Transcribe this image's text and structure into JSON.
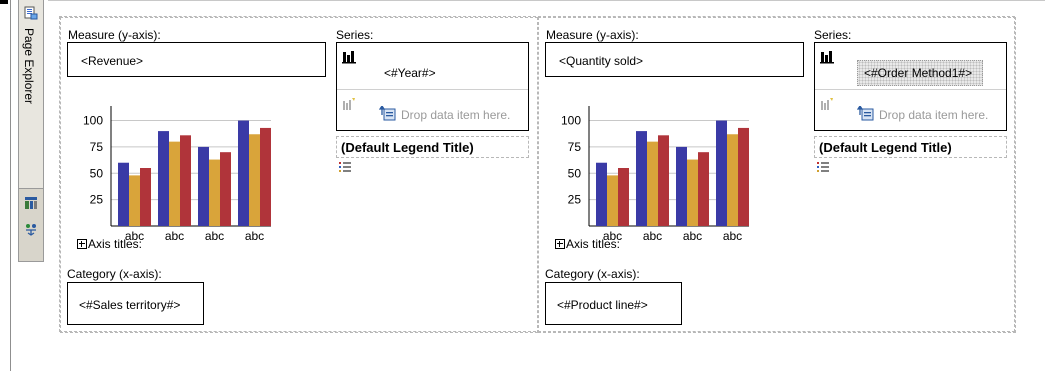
{
  "sidebar": {
    "page_explorer_label": "Page Explorer",
    "icons": [
      "page-explorer-icon",
      "toolbox-icon",
      "data-items-icon"
    ]
  },
  "charts": [
    {
      "measure_label": "Measure (y-axis):",
      "measure_value": "<Revenue>",
      "series_label": "Series:",
      "series_value": "<#Year#>",
      "series_selected": false,
      "drop_text": "Drop data item here.",
      "legend_title": "(Default Legend Title)",
      "axis_titles_label": "Axis titles:",
      "category_label": "Category (x-axis):",
      "category_value": "<#Sales territory#>"
    },
    {
      "measure_label": "Measure (y-axis):",
      "measure_value": "<Quantity sold>",
      "series_label": "Series:",
      "series_value": "<#Order Method1#>",
      "series_selected": true,
      "drop_text": "Drop data item here.",
      "legend_title": "(Default Legend Title)",
      "axis_titles_label": "Axis titles:",
      "category_label": "Category (x-axis):",
      "category_value": "<#Product line#>"
    }
  ],
  "chart_data": [
    {
      "type": "bar",
      "categories": [
        "abc",
        "abc",
        "abc",
        "abc"
      ],
      "series": [
        {
          "values": [
            60,
            90,
            75,
            100
          ],
          "color": "#3a3aa6"
        },
        {
          "values": [
            48,
            80,
            63,
            87
          ],
          "color": "#d9a43a"
        },
        {
          "values": [
            55,
            86,
            70,
            93
          ],
          "color": "#b0343a"
        }
      ],
      "yticks": [
        25,
        50,
        75,
        100
      ],
      "ylim": [
        0,
        110
      ]
    },
    {
      "type": "bar",
      "categories": [
        "abc",
        "abc",
        "abc",
        "abc"
      ],
      "series": [
        {
          "values": [
            60,
            90,
            75,
            100
          ],
          "color": "#3a3aa6"
        },
        {
          "values": [
            48,
            80,
            63,
            87
          ],
          "color": "#d9a43a"
        },
        {
          "values": [
            55,
            86,
            70,
            93
          ],
          "color": "#b0343a"
        }
      ],
      "yticks": [
        25,
        50,
        75,
        100
      ],
      "ylim": [
        0,
        110
      ]
    }
  ]
}
